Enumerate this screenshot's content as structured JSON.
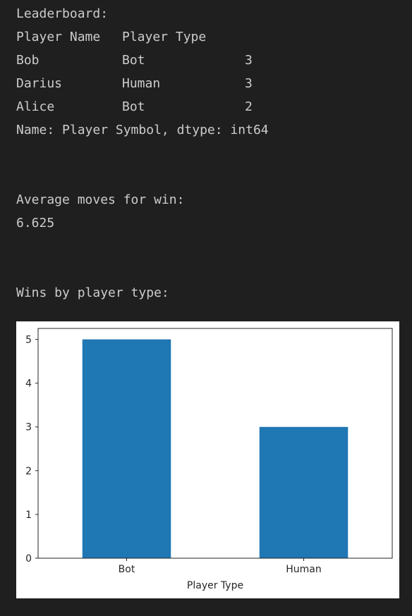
{
  "leaderboard": {
    "title": "Leaderboard:",
    "headers": [
      "Player Name",
      "Player Type"
    ],
    "rows": [
      {
        "name": "Bob",
        "type": "Bot",
        "count": "3"
      },
      {
        "name": "Darius",
        "type": "Human",
        "count": "3"
      },
      {
        "name": "Alice",
        "type": "Bot",
        "count": "2"
      }
    ],
    "footer": "Name: Player Symbol, dtype: int64"
  },
  "average": {
    "title": "Average moves for win:",
    "value": "6.625"
  },
  "wins": {
    "title": "Wins by player type:"
  },
  "chart_data": {
    "type": "bar",
    "title": "",
    "xlabel": "Player Type",
    "ylabel": "",
    "categories": [
      "Bot",
      "Human"
    ],
    "values": [
      5,
      3
    ],
    "ylim": [
      0,
      5.25
    ],
    "yticks": [
      0,
      1,
      2,
      3,
      4,
      5
    ],
    "bar_color": "#1f77b4",
    "grid": false,
    "legend": "none"
  }
}
